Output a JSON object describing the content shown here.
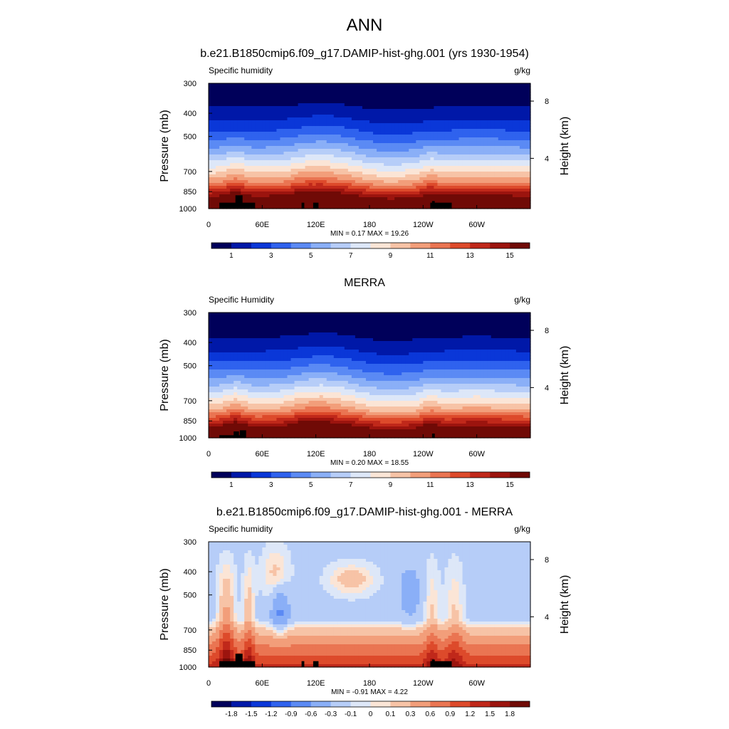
{
  "figure": {
    "title": "ANN"
  },
  "chart_data": [
    {
      "type": "heatmap",
      "title": "b.e21.B1850cmip6.f09_g17.DAMIP-hist-ghg.001 (yrs 1930-1954)",
      "left_label": "Specific humidity",
      "units": "g/kg",
      "ylabel": "Pressure (mb)",
      "right_label": "Height (km)",
      "x_ticks": [
        "0",
        "60E",
        "120E",
        "180",
        "120W",
        "60W"
      ],
      "y_ticks": [
        "300",
        "400",
        "500",
        "700",
        "850",
        "1000"
      ],
      "right_ticks": [
        "8",
        "4"
      ],
      "stats": "MIN =   0.17  MAX =  19.26",
      "colorbar_levels": [
        1,
        2,
        3,
        4,
        5,
        6,
        7,
        8,
        9,
        10,
        11,
        12,
        13,
        14,
        15
      ],
      "colorbar_labels": [
        "1",
        "3",
        "5",
        "7",
        "9",
        "11",
        "13",
        "15"
      ],
      "min": 0.17,
      "max": 19.26
    },
    {
      "type": "heatmap",
      "title": "MERRA",
      "left_label": "Specific Humidity",
      "units": "g/kg",
      "ylabel": "Pressure (mb)",
      "right_label": "Height (km)",
      "x_ticks": [
        "0",
        "60E",
        "120E",
        "180",
        "120W",
        "60W"
      ],
      "y_ticks": [
        "300",
        "400",
        "500",
        "700",
        "850",
        "1000"
      ],
      "right_ticks": [
        "8",
        "4"
      ],
      "stats": "MIN =   0.20  MAX =  18.55",
      "colorbar_levels": [
        1,
        2,
        3,
        4,
        5,
        6,
        7,
        8,
        9,
        10,
        11,
        12,
        13,
        14,
        15
      ],
      "colorbar_labels": [
        "1",
        "3",
        "5",
        "7",
        "9",
        "11",
        "13",
        "15"
      ],
      "min": 0.2,
      "max": 18.55
    },
    {
      "type": "heatmap",
      "title": "b.e21.B1850cmip6.f09_g17.DAMIP-hist-ghg.001 - MERRA",
      "left_label": "Specific humidity",
      "units": "g/kg",
      "ylabel": "Pressure (mb)",
      "right_label": "Height (km)",
      "x_ticks": [
        "0",
        "60E",
        "120E",
        "180",
        "120W",
        "60W"
      ],
      "y_ticks": [
        "300",
        "400",
        "500",
        "700",
        "850",
        "1000"
      ],
      "right_ticks": [
        "8",
        "4"
      ],
      "stats": "MIN =  -0.91  MAX =   4.22",
      "colorbar_levels": [
        -1.8,
        -1.5,
        -1.2,
        -0.9,
        -0.6,
        -0.3,
        -0.1,
        0,
        0.1,
        0.3,
        0.6,
        0.9,
        1.2,
        1.5,
        1.8
      ],
      "colorbar_labels": [
        "-1.8",
        "-1.5",
        "-1.2",
        "-0.9",
        "-0.6",
        "-0.3",
        "-0.1",
        "0",
        "0.1",
        "0.3",
        "0.6",
        "0.9",
        "1.2",
        "1.5",
        "1.8"
      ],
      "min": -0.91,
      "max": 4.22
    }
  ],
  "palette": [
    "#00005a",
    "#0018a8",
    "#0a37d8",
    "#2f62ee",
    "#5b8af4",
    "#8aaff7",
    "#b6cdf8",
    "#dde7f8",
    "#fbe5d6",
    "#f7c3a6",
    "#f29e7a",
    "#ea7552",
    "#dd4a2b",
    "#c0281a",
    "#9c140e",
    "#700a06"
  ]
}
